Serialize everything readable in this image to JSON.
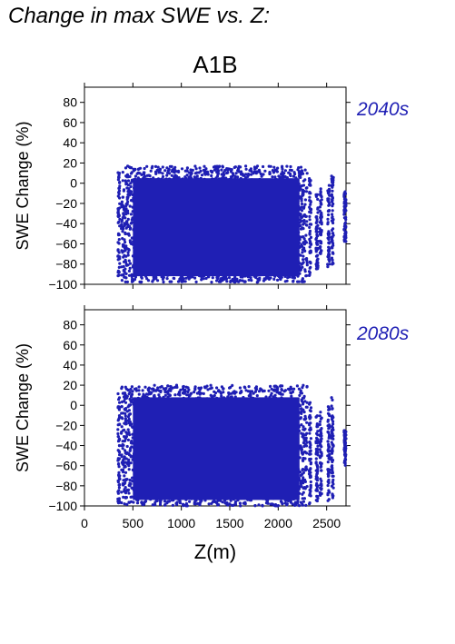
{
  "page_title": "Change in max SWE vs. Z:",
  "chart_data": {
    "type": "scatter",
    "title": "A1B",
    "xlabel": "Z(m)",
    "ylabel": "SWE Change (%)",
    "xlim": [
      0,
      2700
    ],
    "ylim": [
      -100,
      95
    ],
    "x_ticks": [
      0,
      500,
      1000,
      1500,
      2000,
      2500
    ],
    "y_ticks": [
      -100,
      -80,
      -60,
      -40,
      -20,
      0,
      20,
      40,
      60,
      80
    ],
    "point_color": "#1f1fb4",
    "label_color": "#1f1fb4",
    "panels": [
      {
        "label": "2040s",
        "main_cloud": {
          "x_range": [
            380,
            2300
          ],
          "y_range": [
            -98,
            17
          ]
        },
        "columns": [
          {
            "x": 355,
            "y_range": [
              -92,
              12
            ]
          },
          {
            "x": 2330,
            "y_range": [
              -95,
              5
            ]
          },
          {
            "x": 2400,
            "y_range": [
              -85,
              -10
            ]
          },
          {
            "x": 2440,
            "y_range": [
              -70,
              -5
            ]
          },
          {
            "x": 2520,
            "y_range": [
              -90,
              0
            ]
          },
          {
            "x": 2560,
            "y_range": [
              -82,
              8
            ]
          },
          {
            "x": 2690,
            "y_range": [
              -58,
              -8
            ]
          }
        ]
      },
      {
        "label": "2080s",
        "main_cloud": {
          "x_range": [
            380,
            2300
          ],
          "y_range": [
            -100,
            20
          ]
        },
        "columns": [
          {
            "x": 355,
            "y_range": [
              -98,
              12
            ]
          },
          {
            "x": 2330,
            "y_range": [
              -98,
              5
            ]
          },
          {
            "x": 2400,
            "y_range": [
              -95,
              -10
            ]
          },
          {
            "x": 2440,
            "y_range": [
              -92,
              -5
            ]
          },
          {
            "x": 2520,
            "y_range": [
              -98,
              0
            ]
          },
          {
            "x": 2560,
            "y_range": [
              -92,
              10
            ]
          },
          {
            "x": 2690,
            "y_range": [
              -60,
              -25
            ]
          }
        ]
      }
    ]
  }
}
